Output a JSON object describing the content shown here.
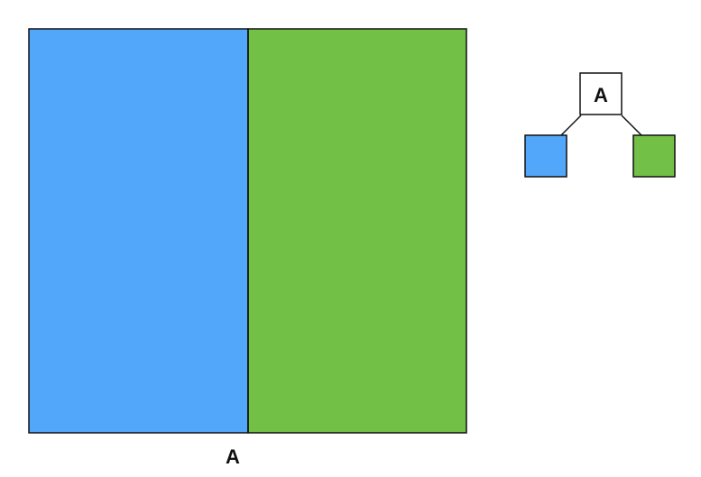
{
  "split_view": {
    "split_label": "A",
    "left_region_color": "#52A7FB",
    "right_region_color": "#72C045"
  },
  "tree": {
    "root_label": "A",
    "left_leaf_color": "#52A7FB",
    "right_leaf_color": "#72C045"
  },
  "colors": {
    "stroke": "#111111",
    "background": "#FFFFFF",
    "root_box_fill": "#FFFFFF"
  }
}
